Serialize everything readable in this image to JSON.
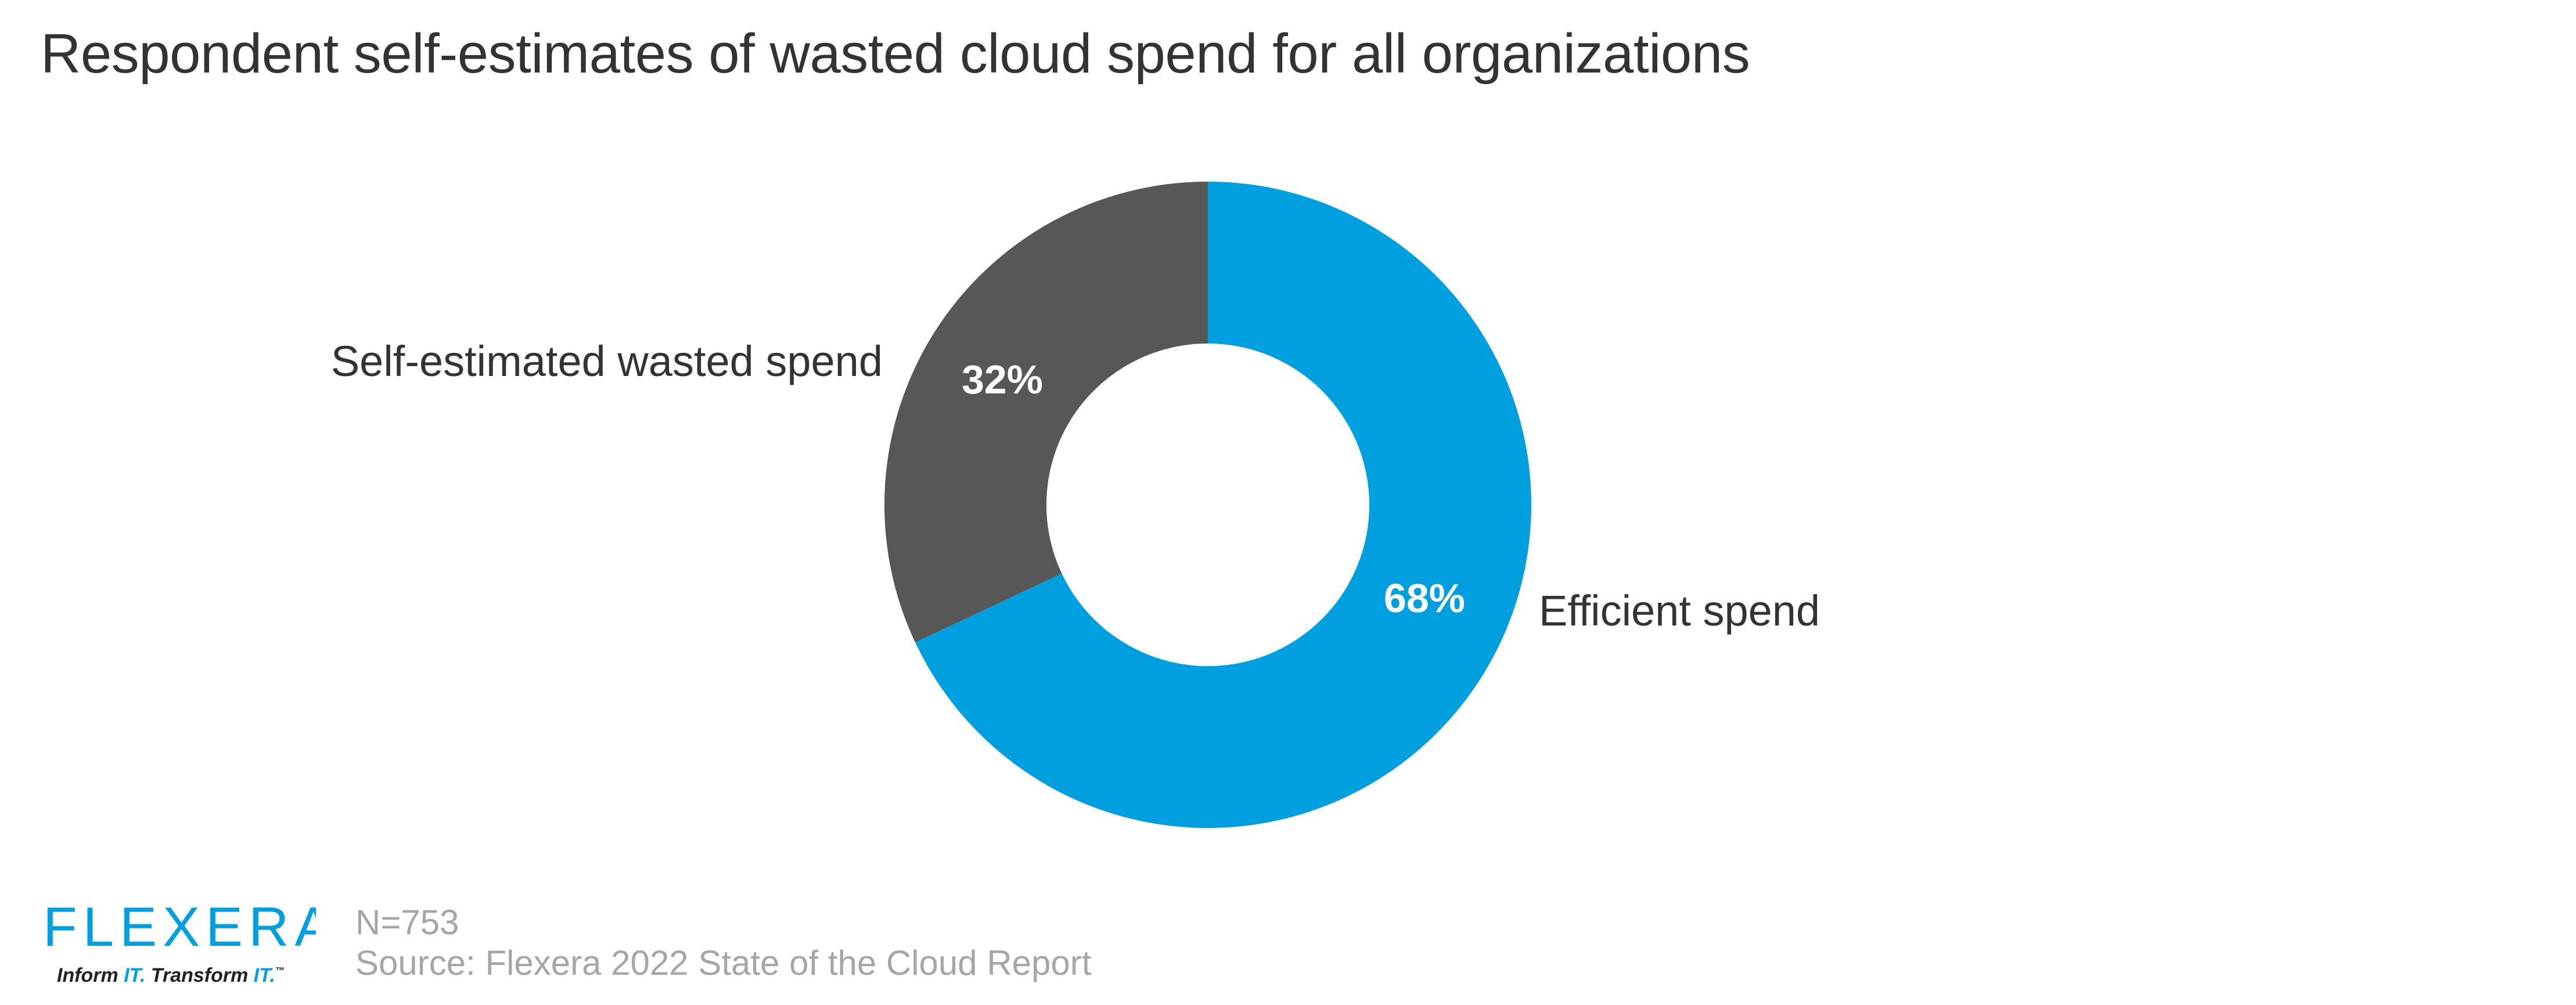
{
  "title": "Respondent self-estimates of wasted cloud spend for all organizations",
  "chart_data": {
    "type": "pie",
    "variant": "donut",
    "title": "Respondent self-estimates of wasted cloud spend for all organizations",
    "slices": [
      {
        "label": "Efficient spend",
        "value": 68,
        "value_label": "68%",
        "color": "#009fdf"
      },
      {
        "label": "Self-estimated wasted spend",
        "value": 32,
        "value_label": "32%",
        "color": "#575757"
      }
    ],
    "start": "12 o'clock",
    "direction": "clockwise",
    "legend": "none (direct labels beside slices)"
  },
  "footer": {
    "logo_word": "FLEXERA",
    "logo_tagline_1": "Inform ",
    "logo_tagline_2": "IT.",
    "logo_tagline_3": " Transform ",
    "logo_tagline_4": "IT.",
    "logo_tagline_tm": "™",
    "n_label": "N=753",
    "source": "Source: Flexera 2022 State of the Cloud Report"
  },
  "colors": {
    "brand_blue": "#009fdf",
    "dark_gray": "#575757",
    "note_gray": "#a6a6a6"
  }
}
